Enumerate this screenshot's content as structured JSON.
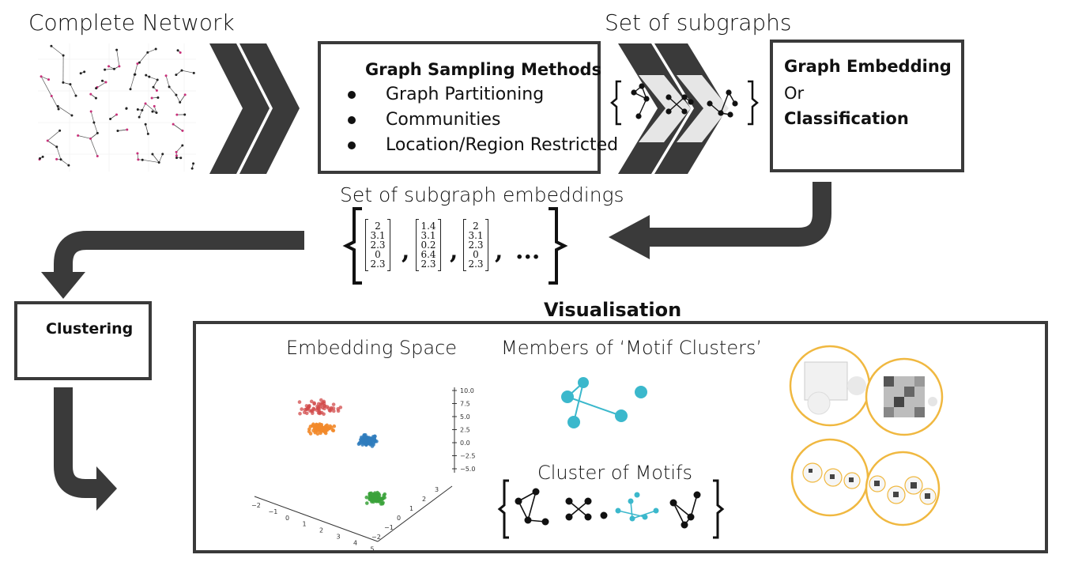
{
  "titles": {
    "complete_network": "Complete Network",
    "set_of_subgraphs": "Set of subgraphs",
    "set_of_subgraph_embeddings": "Set of subgraph embeddings",
    "visualisation": "Visualisation",
    "embedding_space": "Embedding Space",
    "members_of_motif_clusters": "Members of ‘Motif Clusters’",
    "cluster_of_motifs": "Cluster of Motifs"
  },
  "sampling_box": {
    "heading": "Graph Sampling Methods",
    "items": [
      "Graph Partitioning",
      "Communities",
      "Location/Region Restricted"
    ]
  },
  "embedding_box": {
    "line1": "Graph Embedding",
    "line2": "Or",
    "line3": "Classification"
  },
  "clustering_box": {
    "label": "Clustering"
  },
  "embeddings": {
    "vectors": [
      [
        "2",
        "3.1",
        "2.3",
        "0",
        "2.3"
      ],
      [
        "1.4",
        "3.1",
        "0.2",
        "6.4",
        "2.3"
      ],
      [
        "2",
        "3.1",
        "2.3",
        "0",
        "2.3"
      ]
    ],
    "ellipsis": "..."
  },
  "scatter3d": {
    "z_ticks": [
      "10.0",
      "7.5",
      "5.0",
      "2.5",
      "0.0",
      "−2.5",
      "−5.0"
    ],
    "x_ticks": [
      "−2",
      "−1",
      "0",
      "1",
      "2",
      "3",
      "4",
      "5"
    ],
    "y_ticks": [
      "3",
      "2",
      "1",
      "0",
      "−1",
      "−2"
    ]
  },
  "colors": {
    "dark": "#3a3a3a",
    "accent_cyan": "#3bb8cc",
    "circle_gold": "#f0b840",
    "red": "#d14b4b",
    "orange": "#f28a2b",
    "blue": "#2f7dbd",
    "green": "#3aa23a"
  }
}
